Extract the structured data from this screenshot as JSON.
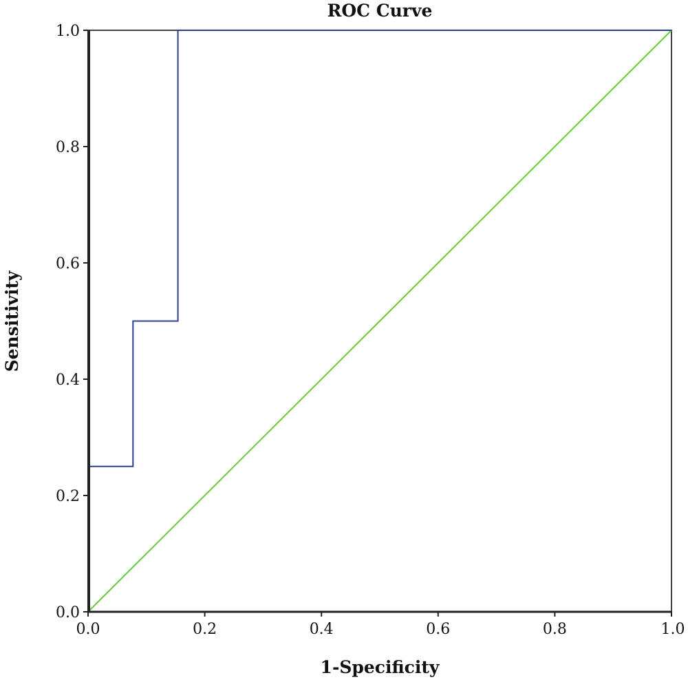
{
  "chart_data": {
    "type": "line",
    "title": "ROC Curve",
    "xlabel": "1-Specificity",
    "ylabel": "Sensitivity",
    "xlim": [
      0.0,
      1.0
    ],
    "ylim": [
      0.0,
      1.0
    ],
    "x_ticks": [
      "0.0",
      "0.2",
      "0.4",
      "0.6",
      "0.8",
      "1.0"
    ],
    "y_ticks": [
      "0.0",
      "0.2",
      "0.4",
      "0.6",
      "0.8",
      "1.0"
    ],
    "grid": false,
    "series": [
      {
        "color": "#2b3f8f",
        "x": [
          0.0,
          0.0,
          0.077,
          0.077,
          0.154,
          0.154,
          1.0
        ],
        "y": [
          0.0,
          0.25,
          0.25,
          0.5,
          0.5,
          1.0,
          1.0
        ]
      },
      {
        "color": "#66cc33",
        "x": [
          0.0,
          1.0
        ],
        "y": [
          0.0,
          1.0
        ]
      }
    ]
  }
}
